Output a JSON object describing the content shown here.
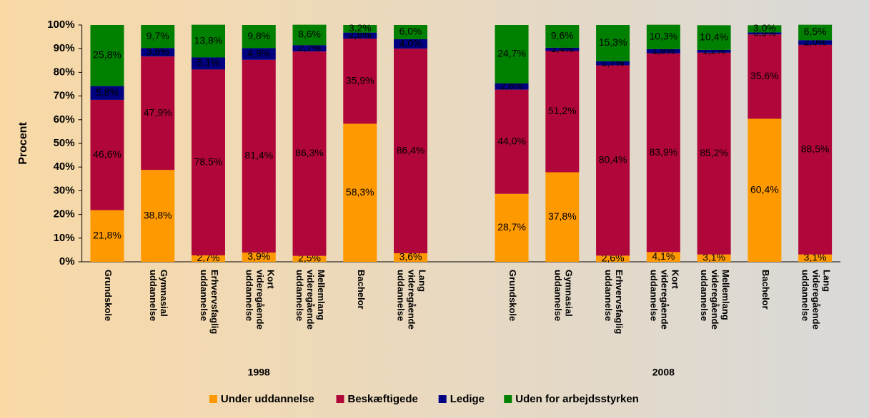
{
  "chart_data": {
    "type": "bar",
    "stacked": true,
    "y_label": "Procent",
    "categories": [
      [
        "Grundskole"
      ],
      [
        "Gymnasial",
        "uddannelse"
      ],
      [
        "Erhvervsfaglig",
        "uddannelse"
      ],
      [
        "Kort",
        "videregående",
        "uddannelse"
      ],
      [
        "Mellemlang",
        "videregående",
        "uddannelse"
      ],
      [
        "Bachelor"
      ],
      [
        "Lang",
        "videregående",
        "uddannelse"
      ],
      null,
      [
        "Grundskole"
      ],
      [
        "Gymnasial",
        "uddannelse"
      ],
      [
        "Erhvervsfaglig",
        "uddannelse"
      ],
      [
        "Kort",
        "videregående",
        "uddannelse"
      ],
      [
        "Mellemlang",
        "videregående",
        "uddannelse"
      ],
      [
        "Bachelor"
      ],
      [
        "Lang",
        "videregående",
        "uddannelse"
      ]
    ],
    "groups": [
      "1998",
      "2008"
    ],
    "series": [
      {
        "name": "Under uddannelse",
        "color": "#ff9900",
        "values": [
          21.8,
          38.8,
          2.7,
          3.9,
          2.5,
          58.3,
          3.6,
          null,
          28.7,
          37.8,
          2.6,
          4.1,
          3.1,
          60.4,
          3.1
        ],
        "value_labels": [
          "21,8%",
          "38,8%",
          "2,7%",
          "3,9%",
          "2,5%",
          "58,3%",
          "3,6%",
          null,
          "28,7%",
          "37,8%",
          "2,6%",
          "4,1%",
          "3,1%",
          "60,4%",
          "3,1%"
        ]
      },
      {
        "name": "Beskæftigede",
        "color": "#b0063a",
        "values": [
          46.6,
          47.9,
          78.5,
          81.4,
          86.3,
          35.9,
          86.4,
          null,
          44.0,
          51.2,
          80.4,
          83.9,
          85.2,
          35.6,
          88.5
        ],
        "value_labels": [
          "46,6%",
          "47,9%",
          "78,5%",
          "81,4%",
          "86,3%",
          "35,9%",
          "86,4%",
          null,
          "44,0%",
          "51,2%",
          "80,4%",
          "83,9%",
          "85,2%",
          "35,6%",
          "88,5%"
        ]
      },
      {
        "name": "Ledige",
        "color": "#000080",
        "values": [
          5.8,
          3.6,
          5.1,
          4.9,
          2.7,
          2.6,
          4.0,
          null,
          2.6,
          1.4,
          1.7,
          1.8,
          1.2,
          0.9,
          2.0
        ],
        "value_labels": [
          "5,8%",
          "3,6%",
          "5,1%",
          "4,9%",
          "2,7%",
          "2,6%",
          "4,0%",
          null,
          "2,6%",
          "1,4%",
          "1,7%",
          "1,8%",
          "1,2%",
          "0,9%",
          "2,0%"
        ]
      },
      {
        "name": "Uden for arbejdsstyrken",
        "color": "#008000",
        "values": [
          25.8,
          9.7,
          13.8,
          9.8,
          8.6,
          3.2,
          6.0,
          null,
          24.7,
          9.6,
          15.3,
          10.3,
          10.4,
          3.0,
          6.5
        ],
        "value_labels": [
          "25,8%",
          "9,7%",
          "13,8%",
          "9,8%",
          "8,6%",
          "3,2%",
          "6,0%",
          null,
          "24,7%",
          "9,6%",
          "15,3%",
          "10,3%",
          "10,4%",
          "3,0%",
          "6,5%"
        ]
      }
    ],
    "ylim": [
      0,
      100
    ],
    "yticks": [
      {
        "value": 0,
        "label": "0%"
      },
      {
        "value": 10,
        "label": "10%"
      },
      {
        "value": 20,
        "label": "20%"
      },
      {
        "value": 30,
        "label": "30%"
      },
      {
        "value": 40,
        "label": "40%"
      },
      {
        "value": 50,
        "label": "50%"
      },
      {
        "value": 60,
        "label": "60%"
      },
      {
        "value": 70,
        "label": "70%"
      },
      {
        "value": 80,
        "label": "80%"
      },
      {
        "value": 90,
        "label": "90%"
      },
      {
        "value": 100,
        "label": "100%"
      }
    ],
    "legend": "bottom"
  }
}
